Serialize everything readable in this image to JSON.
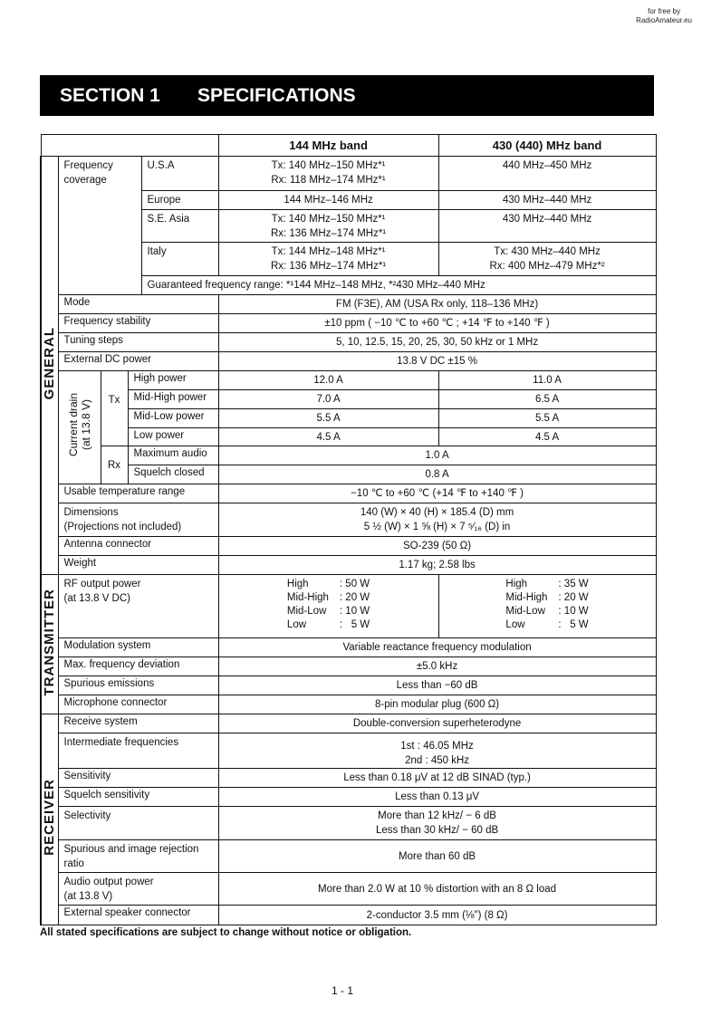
{
  "watermark": "for free by\nRadioAmateur.eu",
  "title": {
    "section": "SECTION 1",
    "name": "SPECIFICATIONS"
  },
  "header": {
    "band144": "144 MHz band",
    "band430": "430 (440) MHz band"
  },
  "sections": {
    "general": "GENERAL",
    "transmitter": "TRANSMITTER",
    "receiver": "RECEIVER"
  },
  "general": {
    "freq_coverage": {
      "label": "Frequency\ncoverage",
      "usa": {
        "region": "U.S.A",
        "v144": "Tx: 140 MHz–150 MHz*¹\nRx: 118 MHz–174 MHz*¹",
        "v430": "440 MHz–450 MHz"
      },
      "europe": {
        "region": "Europe",
        "v144": "144 MHz–146 MHz",
        "v430": "430 MHz–440 MHz"
      },
      "se_asia": {
        "region": "S.E. Asia",
        "v144": "Tx: 140 MHz–150 MHz*¹\nRx: 136 MHz–174 MHz*¹",
        "v430": "430 MHz–440 MHz"
      },
      "italy": {
        "region": "Italy",
        "v144": "Tx: 144 MHz–148 MHz*¹\nRx: 136 MHz–174 MHz*¹",
        "v430": "Tx: 430 MHz–440 MHz\nRx: 400 MHz–479 MHz*²"
      },
      "guaranteed": "Guaranteed frequency range: *¹144 MHz–148 MHz, *²430 MHz–440 MHz"
    },
    "mode": {
      "label": "Mode",
      "value": "FM (F3E), AM (USA Rx only, 118–136 MHz)"
    },
    "freq_stability": {
      "label": "Frequency stability",
      "value": "±10 ppm ( −10 ℃ to +60 ℃ ; +14 ℉ to +140 ℉ )"
    },
    "tuning_steps": {
      "label": "Tuning steps",
      "value": "5, 10, 12.5, 15, 20, 25, 30, 50 kHz or 1 MHz"
    },
    "ext_dc_power": {
      "label": "External DC power",
      "value": "13.8 V DC ±15 %"
    },
    "current_drain": {
      "label": "Current drain\n(at 13.8 V)",
      "tx_label": "Tx",
      "rx_label": "Rx",
      "tx": [
        {
          "label": "High power",
          "v144": "12.0 A",
          "v430": "11.0 A"
        },
        {
          "label": "Mid-High power",
          "v144": "7.0 A",
          "v430": "6.5 A"
        },
        {
          "label": "Mid-Low power",
          "v144": "5.5 A",
          "v430": "5.5 A"
        },
        {
          "label": "Low power",
          "v144": "4.5 A",
          "v430": "4.5 A"
        }
      ],
      "rx": [
        {
          "label": "Maximum audio",
          "value": "1.0 A"
        },
        {
          "label": "Squelch closed",
          "value": "0.8 A"
        }
      ]
    },
    "temp_range": {
      "label": "Usable temperature range",
      "value": "−10 ℃ to +60 ℃ (+14 ℉ to +140 ℉ )"
    },
    "dimensions": {
      "label": "Dimensions\n(Projections not included)",
      "value": "140 (W) × 40 (H) × 185.4 (D) mm\n5 ½ (W) × 1 ⅝ (H) × 7 ⁵⁄₁₆ (D) in"
    },
    "antenna": {
      "label": "Antenna connector",
      "value": "SO-239 (50 Ω)"
    },
    "weight": {
      "label": "Weight",
      "value": "1.17 kg; 2.58 lbs"
    }
  },
  "transmitter": {
    "rf_output": {
      "label": "RF output power\n(at 13.8 V DC)",
      "p144": [
        [
          "High",
          ": 50 W"
        ],
        [
          "Mid-High",
          ": 20 W"
        ],
        [
          "Mid-Low",
          ": 10 W"
        ],
        [
          "Low",
          ":   5 W"
        ]
      ],
      "p430": [
        [
          "High",
          ": 35 W"
        ],
        [
          "Mid-High",
          ": 20 W"
        ],
        [
          "Mid-Low",
          ": 10 W"
        ],
        [
          "Low",
          ":   5 W"
        ]
      ]
    },
    "modulation": {
      "label": "Modulation system",
      "value": "Variable reactance frequency modulation"
    },
    "max_deviation": {
      "label": "Max. frequency deviation",
      "value": "±5.0 kHz"
    },
    "spurious": {
      "label": "Spurious emissions",
      "value": "Less than  −60 dB"
    },
    "mic": {
      "label": "Microphone connector",
      "value": "8-pin modular plug (600 Ω)"
    }
  },
  "receiver": {
    "receive_system": {
      "label": "Receive system",
      "value": "Double-conversion superheterodyne"
    },
    "if": {
      "label": "Intermediate frequencies",
      "value": "1st  : 46.05 MHz\n2nd : 450 kHz"
    },
    "sensitivity": {
      "label": "Sensitivity",
      "value": "Less than 0.18 μV at 12 dB SINAD (typ.)"
    },
    "squelch_sens": {
      "label": "Squelch sensitivity",
      "value": "Less than 0.13 μV"
    },
    "selectivity": {
      "label": "Selectivity",
      "value": "More than 12 kHz/ − 6 dB\nLess than 30 kHz/ − 60 dB"
    },
    "spurious_image": {
      "label": "Spurious and image rejection\nratio",
      "value": "More than 60 dB"
    },
    "audio_output": {
      "label": "Audio output power\n(at 13.8 V)",
      "value": "More than 2.0 W at 10 % distortion with an 8 Ω load"
    },
    "ext_speaker": {
      "label": "External speaker connector",
      "value": "2-conductor 3.5 mm (⅛\") (8 Ω)"
    }
  },
  "footnote": "All stated specifications are subject to change without notice or obligation.",
  "page_number": "1 - 1"
}
